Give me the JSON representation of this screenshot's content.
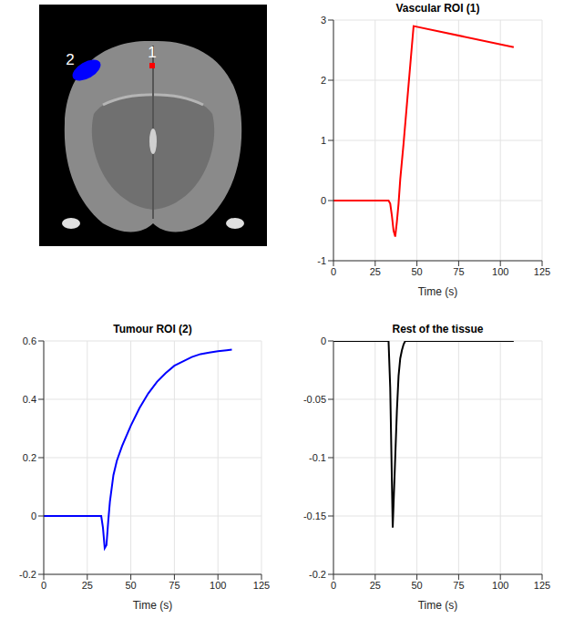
{
  "image": {
    "regions": [
      {
        "label": "1",
        "color": "#ff0000"
      },
      {
        "label": "2",
        "color": "#0000ff"
      }
    ]
  },
  "chart_data": [
    {
      "type": "line",
      "title": "Vascular ROI (1)",
      "x_label": "Time (s)",
      "x": [
        0,
        33,
        34,
        35,
        36,
        37,
        38,
        39,
        40,
        42,
        44,
        46,
        48,
        108
      ],
      "values": [
        0,
        0,
        -0.05,
        -0.25,
        -0.5,
        -0.6,
        -0.35,
        -0.05,
        0.35,
        0.95,
        1.6,
        2.25,
        2.9,
        2.55
      ],
      "color": "#ff0000",
      "xlim": [
        0,
        125
      ],
      "xticks": [
        0,
        25,
        50,
        75,
        100,
        125
      ],
      "ylim": [
        -1,
        3
      ],
      "yticks": [
        -1,
        0,
        1,
        2,
        3
      ],
      "grid": true
    },
    {
      "type": "line",
      "title": "Tumour ROI (2)",
      "x_label": "Time (s)",
      "x": [
        0,
        33,
        34,
        35,
        36,
        37,
        38,
        40,
        42,
        45,
        50,
        55,
        60,
        65,
        70,
        75,
        80,
        85,
        90,
        95,
        100,
        105,
        108
      ],
      "values": [
        0,
        0,
        -0.04,
        -0.11,
        -0.1,
        -0.02,
        0.05,
        0.14,
        0.19,
        0.24,
        0.31,
        0.37,
        0.42,
        0.46,
        0.49,
        0.515,
        0.53,
        0.545,
        0.555,
        0.56,
        0.565,
        0.568,
        0.57
      ],
      "color": "#0000ff",
      "xlim": [
        0,
        125
      ],
      "xticks": [
        0,
        25,
        50,
        75,
        100,
        125
      ],
      "ylim": [
        -0.2,
        0.6
      ],
      "yticks": [
        -0.2,
        0,
        0.2,
        0.4,
        0.6
      ],
      "grid": true
    },
    {
      "type": "line",
      "title": "Rest of the tissue",
      "x_label": "Time (s)",
      "x": [
        0,
        33,
        34,
        35,
        35.5,
        36,
        37,
        38,
        39,
        40,
        41,
        42,
        43,
        45,
        108
      ],
      "values": [
        0,
        0,
        -0.04,
        -0.12,
        -0.16,
        -0.14,
        -0.1,
        -0.06,
        -0.03,
        -0.015,
        -0.008,
        -0.003,
        0,
        0,
        0
      ],
      "color": "#000000",
      "xlim": [
        0,
        125
      ],
      "xticks": [
        0,
        25,
        50,
        75,
        100,
        125
      ],
      "ylim": [
        -0.2,
        0
      ],
      "yticks": [
        -0.2,
        -0.15,
        -0.1,
        -0.05,
        0
      ],
      "grid": true
    }
  ]
}
